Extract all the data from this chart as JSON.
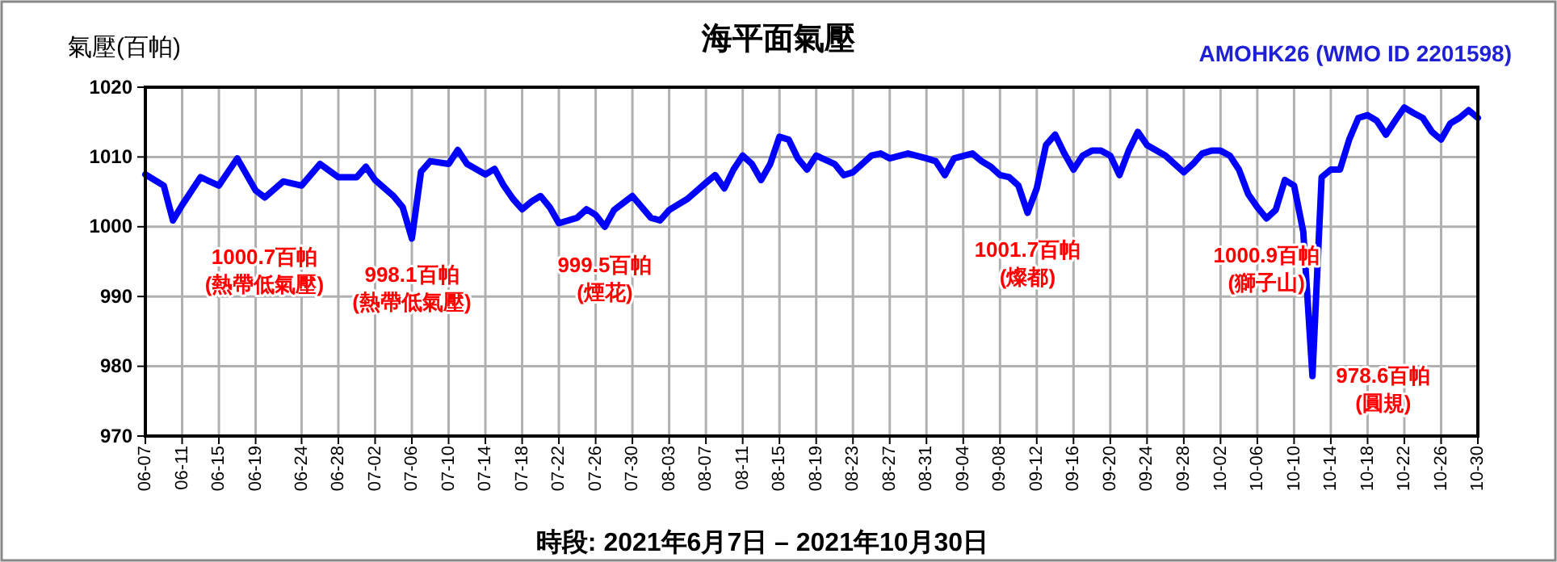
{
  "chart_data": {
    "type": "line",
    "title": "海平面氣壓",
    "subtitle": "AMOHK26 (WMO ID 2201598)",
    "ylabel": "氣壓(百帕)",
    "xlabel": "時段: 2021年6月7日 – 2021年10月30日",
    "x": [
      "2021-06-07",
      "2021-06-09",
      "2021-06-10",
      "2021-06-11",
      "2021-06-13",
      "2021-06-15",
      "2021-06-17",
      "2021-06-19",
      "2021-06-20",
      "2021-06-22",
      "2021-06-24",
      "2021-06-26",
      "2021-06-28",
      "2021-06-30",
      "2021-07-01",
      "2021-07-02",
      "2021-07-04",
      "2021-07-05",
      "2021-07-06",
      "2021-07-07",
      "2021-07-08",
      "2021-07-10",
      "2021-07-11",
      "2021-07-12",
      "2021-07-14",
      "2021-07-15",
      "2021-07-16",
      "2021-07-17",
      "2021-07-18",
      "2021-07-19",
      "2021-07-20",
      "2021-07-21",
      "2021-07-22",
      "2021-07-24",
      "2021-07-25",
      "2021-07-26",
      "2021-07-27",
      "2021-07-28",
      "2021-07-30",
      "2021-08-01",
      "2021-08-02",
      "2021-08-03",
      "2021-08-05",
      "2021-08-07",
      "2021-08-08",
      "2021-08-09",
      "2021-08-10",
      "2021-08-11",
      "2021-08-12",
      "2021-08-13",
      "2021-08-14",
      "2021-08-15",
      "2021-08-16",
      "2021-08-17",
      "2021-08-18",
      "2021-08-19",
      "2021-08-21",
      "2021-08-22",
      "2021-08-23",
      "2021-08-25",
      "2021-08-26",
      "2021-08-27",
      "2021-08-29",
      "2021-08-31",
      "2021-09-01",
      "2021-09-02",
      "2021-09-03",
      "2021-09-05",
      "2021-09-06",
      "2021-09-07",
      "2021-09-08",
      "2021-09-09",
      "2021-09-10",
      "2021-09-11",
      "2021-09-12",
      "2021-09-13",
      "2021-09-14",
      "2021-09-15",
      "2021-09-16",
      "2021-09-17",
      "2021-09-18",
      "2021-09-19",
      "2021-09-20",
      "2021-09-21",
      "2021-09-22",
      "2021-09-23",
      "2021-09-24",
      "2021-09-26",
      "2021-09-28",
      "2021-09-29",
      "2021-09-30",
      "2021-10-01",
      "2021-10-02",
      "2021-10-03",
      "2021-10-04",
      "2021-10-05",
      "2021-10-06",
      "2021-10-07",
      "2021-10-08",
      "2021-10-09",
      "2021-10-10",
      "2021-10-11",
      "2021-10-12",
      "2021-10-13",
      "2021-10-14",
      "2021-10-15",
      "2021-10-16",
      "2021-10-17",
      "2021-10-18",
      "2021-10-19",
      "2021-10-20",
      "2021-10-21",
      "2021-10-22",
      "2021-10-23",
      "2021-10-24",
      "2021-10-25",
      "2021-10-26",
      "2021-10-27",
      "2021-10-28",
      "2021-10-29",
      "2021-10-30"
    ],
    "series": [
      {
        "color": "#0000ff",
        "values": [
          1007.5,
          1005.9,
          1000.9,
          1003.1,
          1007.1,
          1005.9,
          1009.8,
          1005.2,
          1004.2,
          1006.5,
          1005.9,
          1009.0,
          1007.1,
          1007.1,
          1008.6,
          1006.7,
          1004.4,
          1002.8,
          998.3,
          1007.9,
          1009.4,
          1009.0,
          1011.0,
          1009.0,
          1007.5,
          1008.3,
          1005.9,
          1004.0,
          1002.5,
          1003.6,
          1004.4,
          1002.8,
          1000.5,
          1001.3,
          1002.5,
          1001.7,
          1000.0,
          1002.4,
          1004.4,
          1001.3,
          1000.9,
          1002.4,
          1004.0,
          1006.3,
          1007.4,
          1005.5,
          1008.2,
          1010.2,
          1009.0,
          1006.7,
          1009.0,
          1012.9,
          1012.5,
          1009.8,
          1008.2,
          1010.2,
          1009.0,
          1007.4,
          1007.8,
          1010.2,
          1010.5,
          1009.8,
          1010.5,
          1009.8,
          1009.4,
          1007.4,
          1009.8,
          1010.5,
          1009.4,
          1008.6,
          1007.4,
          1007.1,
          1005.9,
          1002.0,
          1005.5,
          1011.7,
          1013.2,
          1010.5,
          1008.2,
          1010.2,
          1010.9,
          1010.9,
          1010.2,
          1007.4,
          1010.9,
          1013.6,
          1011.7,
          1010.2,
          1007.8,
          1009.0,
          1010.5,
          1010.9,
          1010.9,
          1010.2,
          1008.2,
          1004.7,
          1002.8,
          1001.2,
          1002.4,
          1006.7,
          1005.9,
          999.3,
          978.6,
          1007.1,
          1008.2,
          1008.2,
          1012.5,
          1015.6,
          1016.0,
          1015.2,
          1013.2,
          1015.2,
          1017.1,
          1016.3,
          1015.6,
          1013.6,
          1012.5,
          1014.8,
          1015.6,
          1016.7,
          1015.6
        ]
      }
    ],
    "ylim": [
      970,
      1020
    ],
    "yticks": [
      970,
      980,
      990,
      1000,
      1010,
      1020
    ],
    "xlim": [
      "2021-06-07",
      "2021-10-30"
    ],
    "xticks": [
      {
        "value": "2021-06-07",
        "label": "06-07"
      },
      {
        "value": "2021-06-11",
        "label": "06-11"
      },
      {
        "value": "2021-06-15",
        "label": "06-15"
      },
      {
        "value": "2021-06-19",
        "label": "06-19"
      },
      {
        "value": "2021-06-24",
        "label": "06-24"
      },
      {
        "value": "2021-06-28",
        "label": "06-28"
      },
      {
        "value": "2021-07-02",
        "label": "07-02"
      },
      {
        "value": "2021-07-06",
        "label": "07-06"
      },
      {
        "value": "2021-07-10",
        "label": "07-10"
      },
      {
        "value": "2021-07-14",
        "label": "07-14"
      },
      {
        "value": "2021-07-18",
        "label": "07-18"
      },
      {
        "value": "2021-07-22",
        "label": "07-22"
      },
      {
        "value": "2021-07-26",
        "label": "07-26"
      },
      {
        "value": "2021-07-30",
        "label": "07-30"
      },
      {
        "value": "2021-08-03",
        "label": "08-03"
      },
      {
        "value": "2021-08-07",
        "label": "08-07"
      },
      {
        "value": "2021-08-11",
        "label": "08-11"
      },
      {
        "value": "2021-08-15",
        "label": "08-15"
      },
      {
        "value": "2021-08-19",
        "label": "08-19"
      },
      {
        "value": "2021-08-23",
        "label": "08-23"
      },
      {
        "value": "2021-08-27",
        "label": "08-27"
      },
      {
        "value": "2021-08-31",
        "label": "08-31"
      },
      {
        "value": "2021-09-04",
        "label": "09-04"
      },
      {
        "value": "2021-09-08",
        "label": "09-08"
      },
      {
        "value": "2021-09-12",
        "label": "09-12"
      },
      {
        "value": "2021-09-16",
        "label": "09-16"
      },
      {
        "value": "2021-09-20",
        "label": "09-20"
      },
      {
        "value": "2021-09-24",
        "label": "09-24"
      },
      {
        "value": "2021-09-28",
        "label": "09-28"
      },
      {
        "value": "2021-10-02",
        "label": "10-02"
      },
      {
        "value": "2021-10-06",
        "label": "10-06"
      },
      {
        "value": "2021-10-10",
        "label": "10-10"
      },
      {
        "value": "2021-10-14",
        "label": "10-14"
      },
      {
        "value": "2021-10-18",
        "label": "10-18"
      },
      {
        "value": "2021-10-22",
        "label": "10-22"
      },
      {
        "value": "2021-10-26",
        "label": "10-26"
      },
      {
        "value": "2021-10-30",
        "label": "10-30"
      }
    ],
    "grid": true,
    "line_style": "solid",
    "annotations": [
      {
        "text": "1000.7百帕\n(熱帶低氣壓)",
        "x": "2021-06-10",
        "y": 1000.7
      },
      {
        "text": "998.1百帕\n(熱帶低氣壓)",
        "x": "2021-07-06",
        "y": 998.1
      },
      {
        "text": "999.5百帕\n(煙花)",
        "x": "2021-07-27",
        "y": 999.5
      },
      {
        "text": "1001.7百帕\n(燦都)",
        "x": "2021-09-11",
        "y": 1001.7
      },
      {
        "text": "1000.9百帕\n(獅子山)",
        "x": "2021-10-07",
        "y": 1000.9
      },
      {
        "text": "978.6百帕\n(圓規)",
        "x": "2021-10-12",
        "y": 978.6
      }
    ]
  }
}
